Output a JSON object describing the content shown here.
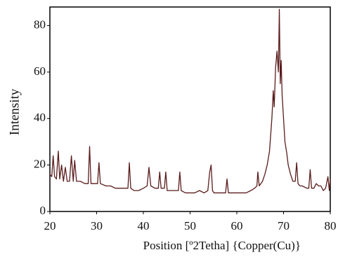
{
  "chart_data": {
    "type": "line",
    "xlabel": "Position [º2Tetha] {Copper(Cu)}",
    "ylabel": "Intensity",
    "x": [
      20,
      20.4,
      20.7,
      21,
      21.4,
      21.8,
      22.1,
      22.5,
      22.9,
      23.3,
      23.7,
      24.2,
      24.6,
      25,
      25.3,
      25.7,
      26.5,
      27.5,
      28.2,
      28.5,
      28.8,
      29.5,
      30.2,
      30.5,
      30.8,
      32,
      33,
      34,
      35,
      36,
      36.7,
      37,
      37.3,
      38,
      39,
      40,
      40.8,
      41.2,
      41.6,
      42.5,
      43.2,
      43.5,
      43.8,
      44.5,
      44.8,
      45.1,
      46,
      47,
      47.5,
      47.8,
      48.1,
      49,
      50,
      51,
      52,
      53,
      53.8,
      54.2,
      54.5,
      54.8,
      55.1,
      56,
      57,
      57.6,
      57.9,
      58.2,
      59,
      60,
      61,
      62,
      63,
      63.8,
      64.3,
      64.5,
      64.8,
      65.5,
      66,
      66.5,
      67,
      67.5,
      67.8,
      68,
      68.3,
      68.6,
      68.9,
      69.1,
      69.3,
      69.5,
      69.7,
      70,
      70.3,
      70.7,
      71,
      71.5,
      72,
      72.5,
      72.8,
      73.1,
      73.5,
      74,
      75,
      75.4,
      75.7,
      76,
      76.5,
      77,
      77.5,
      78,
      78.5,
      79,
      79.5,
      79.8,
      80
    ],
    "series": [
      {
        "name": "Intensity",
        "color": "#5a1c1c",
        "values": [
          16,
          15,
          24,
          15,
          14,
          26,
          14,
          20,
          13,
          19,
          13,
          13,
          24,
          13,
          22,
          13,
          13,
          12,
          12,
          28,
          12,
          12,
          12,
          21,
          12,
          11,
          11,
          10,
          10,
          10,
          10,
          21,
          10,
          9,
          9,
          10,
          11,
          19,
          11,
          10,
          10,
          17,
          10,
          10,
          17,
          9,
          9,
          9,
          9,
          17,
          9,
          8,
          8,
          8,
          9,
          8,
          9,
          17,
          20,
          9,
          8,
          8,
          8,
          8,
          14,
          8,
          8,
          8,
          8,
          8,
          9,
          10,
          11,
          17,
          11,
          13,
          16,
          20,
          26,
          40,
          52,
          45,
          62,
          69,
          60,
          87,
          55,
          65,
          50,
          40,
          30,
          25,
          20,
          16,
          13,
          13,
          21,
          12,
          11,
          11,
          10,
          10,
          18,
          10,
          10,
          12,
          11,
          11,
          9,
          10,
          15,
          9,
          14
        ]
      }
    ],
    "xlim": [
      20,
      80
    ],
    "xticks": [
      20,
      30,
      40,
      50,
      60,
      70,
      80
    ],
    "ylim": [
      0,
      88
    ],
    "yticks": [
      0,
      20,
      40,
      60,
      80
    ],
    "grid": false
  }
}
